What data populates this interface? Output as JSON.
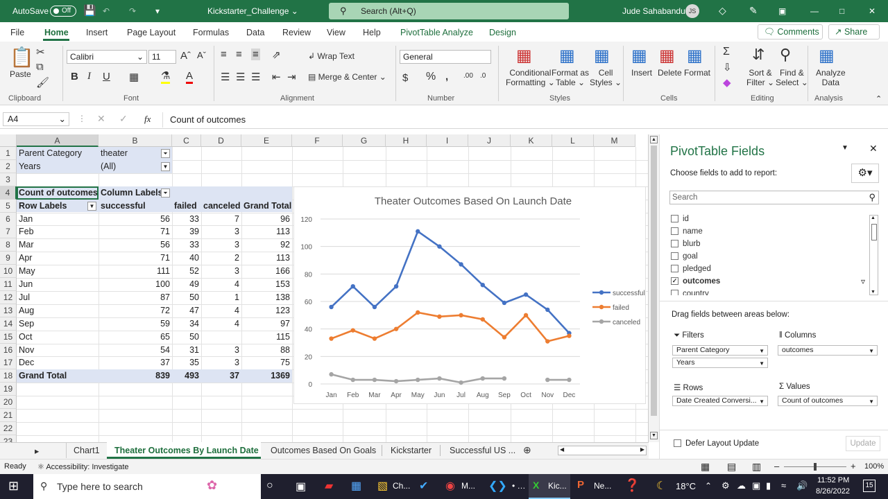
{
  "titlebar": {
    "autosave": "AutoSave",
    "toggle": "Off",
    "filename": "Kickstarter_Challenge",
    "search": "Search (Alt+Q)",
    "user": "Jude Sahabandu",
    "initials": "JS"
  },
  "menu": [
    "File",
    "Home",
    "Insert",
    "Page Layout",
    "Formulas",
    "Data",
    "Review",
    "View",
    "Help",
    "PivotTable Analyze",
    "Design"
  ],
  "menu_active": "Home",
  "comments": "Comments",
  "share": "Share",
  "ribbon": {
    "font_name": "Calibri",
    "font_size": "11",
    "number_format": "General",
    "paste": "Paste",
    "wrap_text": "Wrap Text",
    "merge_center": "Merge & Center",
    "cond_fmt": [
      "Conditional",
      "Formatting"
    ],
    "fmt_table": [
      "Format as",
      "Table"
    ],
    "cell_styles": [
      "Cell",
      "Styles"
    ],
    "insert": "Insert",
    "delete": "Delete",
    "format": "Format",
    "sort": [
      "Sort &",
      "Filter"
    ],
    "find": [
      "Find &",
      "Select"
    ],
    "analyze": [
      "Analyze",
      "Data"
    ],
    "groups": [
      "Clipboard",
      "Font",
      "Alignment",
      "Number",
      "Styles",
      "Cells",
      "Editing",
      "Analysis"
    ]
  },
  "formula": {
    "namebox": "A4",
    "fx": "fx",
    "content": "Count of outcomes"
  },
  "columns": [
    "A",
    "B",
    "C",
    "D",
    "E",
    "F",
    "G",
    "H",
    "I",
    "J",
    "K",
    "L",
    "M"
  ],
  "rows": [
    "1",
    "2",
    "3",
    "4",
    "5",
    "6",
    "7",
    "8",
    "9",
    "10",
    "11",
    "12",
    "13",
    "14",
    "15",
    "16",
    "17",
    "18",
    "19",
    "20",
    "21",
    "22",
    "23"
  ],
  "pivot": {
    "filter1": [
      "Parent Category",
      "theater"
    ],
    "filter2": [
      "Years",
      "(All)"
    ],
    "header": [
      "Count of outcomes",
      "Column Labels"
    ],
    "colhead": [
      "Row Labels",
      "successful",
      "failed",
      "canceled",
      "Grand Total"
    ],
    "data": [
      [
        "Jan",
        "56",
        "33",
        "7",
        "96"
      ],
      [
        "Feb",
        "71",
        "39",
        "3",
        "113"
      ],
      [
        "Mar",
        "56",
        "33",
        "3",
        "92"
      ],
      [
        "Apr",
        "71",
        "40",
        "2",
        "113"
      ],
      [
        "May",
        "111",
        "52",
        "3",
        "166"
      ],
      [
        "Jun",
        "100",
        "49",
        "4",
        "153"
      ],
      [
        "Jul",
        "87",
        "50",
        "1",
        "138"
      ],
      [
        "Aug",
        "72",
        "47",
        "4",
        "123"
      ],
      [
        "Sep",
        "59",
        "34",
        "4",
        "97"
      ],
      [
        "Oct",
        "65",
        "50",
        "",
        "115"
      ],
      [
        "Nov",
        "54",
        "31",
        "3",
        "88"
      ],
      [
        "Dec",
        "37",
        "35",
        "3",
        "75"
      ]
    ],
    "total": [
      "Grand Total",
      "839",
      "493",
      "37",
      "1369"
    ]
  },
  "chart_data": {
    "type": "line",
    "title": "Theater Outcomes Based On Launch Date",
    "categories": [
      "Jan",
      "Feb",
      "Mar",
      "Apr",
      "May",
      "Jun",
      "Jul",
      "Aug",
      "Sep",
      "Oct",
      "Nov",
      "Dec"
    ],
    "series": [
      {
        "name": "successful",
        "color": "#4472c4",
        "values": [
          56,
          71,
          56,
          71,
          111,
          100,
          87,
          72,
          59,
          65,
          54,
          37
        ]
      },
      {
        "name": "failed",
        "color": "#ed7d31",
        "values": [
          33,
          39,
          33,
          40,
          52,
          49,
          50,
          47,
          34,
          50,
          31,
          35
        ]
      },
      {
        "name": "canceled",
        "color": "#a5a5a5",
        "values": [
          7,
          3,
          3,
          2,
          3,
          4,
          1,
          4,
          4,
          null,
          3,
          3
        ]
      }
    ],
    "ylim": [
      0,
      120
    ],
    "yticks": [
      "0",
      "20",
      "40",
      "60",
      "80",
      "100",
      "120"
    ],
    "legend": "right",
    "grid": true
  },
  "tabs": [
    "Chart1",
    "Theater Outcomes By Launch Date",
    "Outcomes Based On Goals",
    "Kickstarter",
    "Successful US ..."
  ],
  "tab_active": "Theater Outcomes By Launch Date",
  "status": {
    "ready": "Ready",
    "access": "Accessibility: Investigate",
    "zoom": "100%"
  },
  "pane": {
    "title": "PivotTable Fields",
    "choose": "Choose fields to add to report:",
    "search_placeholder": "Search",
    "fields": [
      {
        "name": "id",
        "checked": false
      },
      {
        "name": "name",
        "checked": false
      },
      {
        "name": "blurb",
        "checked": false
      },
      {
        "name": "goal",
        "checked": false
      },
      {
        "name": "pledged",
        "checked": false
      },
      {
        "name": "outcomes",
        "checked": true
      },
      {
        "name": "country",
        "checked": false
      }
    ],
    "drag": "Drag fields between areas below:",
    "filters": "Filters",
    "columns": "Columns",
    "rows": "Rows",
    "values": "Values",
    "filter_items": [
      "Parent Category",
      "Years"
    ],
    "column_items": [
      "outcomes"
    ],
    "row_items": [
      "Date Created Conversi..."
    ],
    "value_items": [
      "Count of outcomes"
    ],
    "defer": "Defer Layout Update",
    "update": "Update"
  },
  "taskbar": {
    "search": "Type here to search",
    "apps": [
      "Ch...",
      "M...",
      "Kic...",
      "Ne..."
    ],
    "temp": "18°C",
    "time": "11:52 PM",
    "date": "8/26/2022",
    "notif": "15"
  }
}
